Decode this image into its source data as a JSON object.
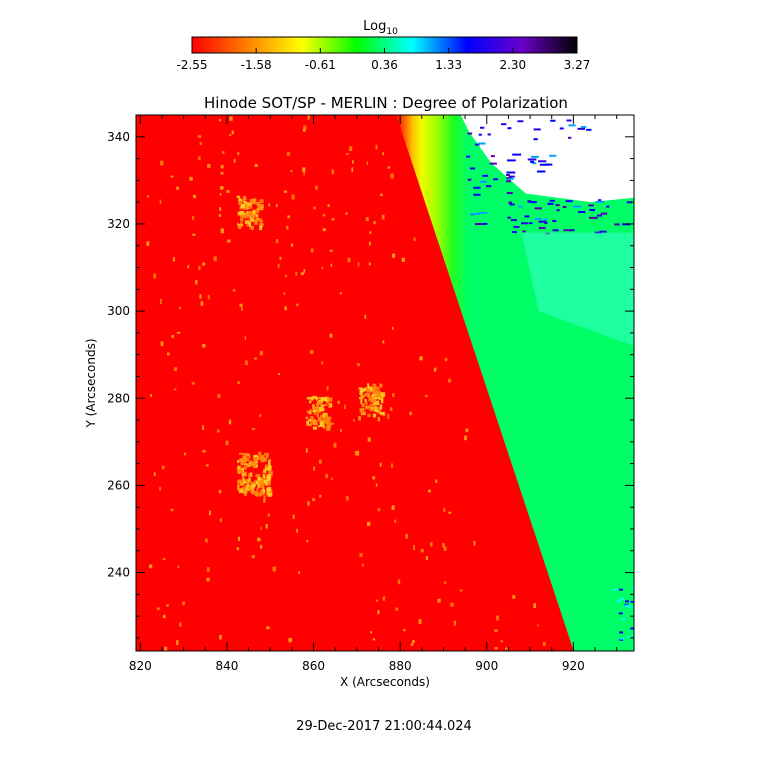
{
  "chart_data": {
    "type": "heatmap",
    "title": "Hinode SOT/SP - MERLIN : Degree of Polarization",
    "xlabel": "X (Arcseconds)",
    "ylabel": "Y (Arcseconds)",
    "xlim": [
      819,
      934
    ],
    "ylim": [
      222,
      345
    ],
    "x_ticks": [
      820,
      840,
      860,
      880,
      900,
      920
    ],
    "y_ticks": [
      240,
      260,
      280,
      300,
      320,
      340
    ],
    "colorbar": {
      "label_base": "Log",
      "label_sub": "10",
      "range": [
        -2.55,
        3.27
      ],
      "ticks": [
        -2.55,
        -1.58,
        -0.61,
        0.36,
        1.33,
        2.3,
        3.27
      ],
      "tick_labels": [
        "-2.55",
        "-1.58",
        "-0.61",
        "0.36",
        "1.33",
        "2.30",
        "3.27"
      ],
      "colormap": [
        "#ff0000",
        "#ff7f00",
        "#ffff00",
        "#00ff00",
        "#00ffff",
        "#0000ff",
        "#6a00c8",
        "#000000"
      ]
    },
    "limb_boundary": [
      {
        "y": 345,
        "x": 880
      },
      {
        "y": 222,
        "x": 921
      }
    ],
    "missing_region": "upper-right (white, no data)",
    "bright_patches": [
      {
        "x": 846,
        "y": 263
      },
      {
        "x": 873,
        "y": 280
      },
      {
        "x": 861,
        "y": 277
      },
      {
        "x": 845,
        "y": 323
      }
    ]
  },
  "footer": {
    "timestamp": "29-Dec-2017 21:00:44.024"
  }
}
